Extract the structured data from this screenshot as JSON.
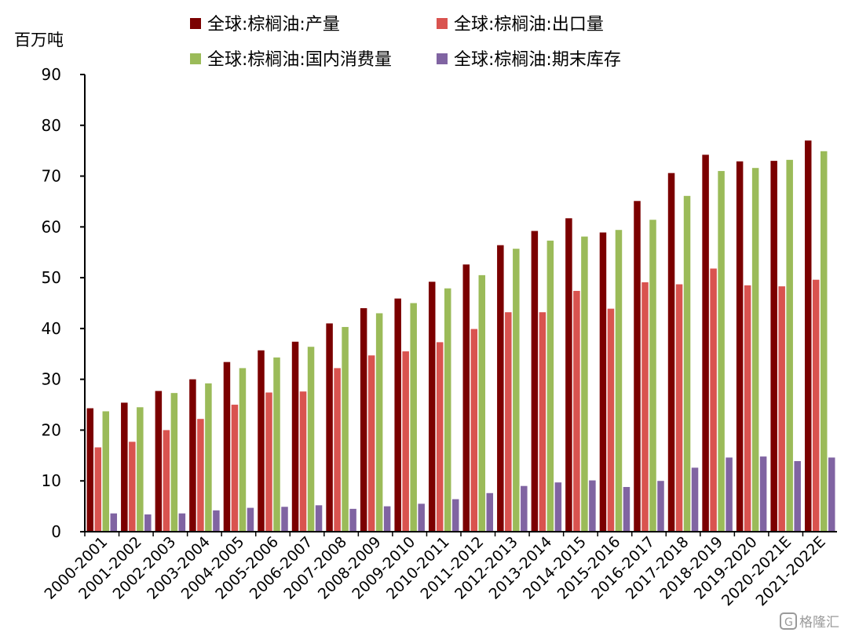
{
  "chart_data": {
    "type": "bar",
    "ylabel": "百万吨",
    "ylim": [
      0,
      90
    ],
    "yticks": [
      0,
      10,
      20,
      30,
      40,
      50,
      60,
      70,
      80,
      90
    ],
    "grid": false,
    "legend_position": "top",
    "categories": [
      "2000-2001",
      "2001-2002",
      "2002-2003",
      "2003-2004",
      "2004-2005",
      "2005-2006",
      "2006-2007",
      "2007-2008",
      "2008-2009",
      "2009-2010",
      "2010-2011",
      "2011-2012",
      "2012-2013",
      "2013-2014",
      "2014-2015",
      "2015-2016",
      "2016-2017",
      "2017-2018",
      "2018-2019",
      "2019-2020",
      "2020-2021E",
      "2021-2022E"
    ],
    "series": [
      {
        "name": "全球:棕榈油:产量",
        "color": "#7b0000",
        "values": [
          24.3,
          25.4,
          27.7,
          30.0,
          33.4,
          35.7,
          37.4,
          41.0,
          44.0,
          45.9,
          49.2,
          52.6,
          56.4,
          59.2,
          61.7,
          58.9,
          65.1,
          70.6,
          74.2,
          72.9,
          73.0,
          77.0
        ]
      },
      {
        "name": "全球:棕榈油:出口量",
        "color": "#d9534f",
        "values": [
          16.6,
          17.7,
          20.0,
          22.2,
          25.0,
          27.4,
          27.6,
          32.2,
          34.7,
          35.5,
          37.3,
          39.9,
          43.2,
          43.2,
          47.4,
          43.9,
          49.1,
          48.7,
          51.8,
          48.5,
          48.3,
          49.6
        ]
      },
      {
        "name": "全球:棕榈油:国内消费量",
        "color": "#9bbb59",
        "values": [
          23.7,
          24.5,
          27.3,
          29.2,
          32.2,
          34.3,
          36.4,
          40.3,
          43.0,
          45.0,
          47.9,
          50.5,
          55.7,
          57.3,
          58.1,
          59.4,
          61.4,
          66.1,
          71.0,
          71.6,
          73.2,
          74.9
        ]
      },
      {
        "name": "全球:棕榈油:期末库存",
        "color": "#8064a2",
        "values": [
          3.6,
          3.4,
          3.6,
          4.2,
          4.7,
          4.9,
          5.2,
          4.5,
          5.0,
          5.5,
          6.4,
          7.6,
          9.0,
          9.7,
          10.1,
          8.8,
          10.0,
          12.6,
          14.6,
          14.8,
          13.9,
          14.6
        ]
      }
    ]
  },
  "watermark": {
    "text": "格隆汇",
    "icon": "gelonghui-logo-icon"
  }
}
